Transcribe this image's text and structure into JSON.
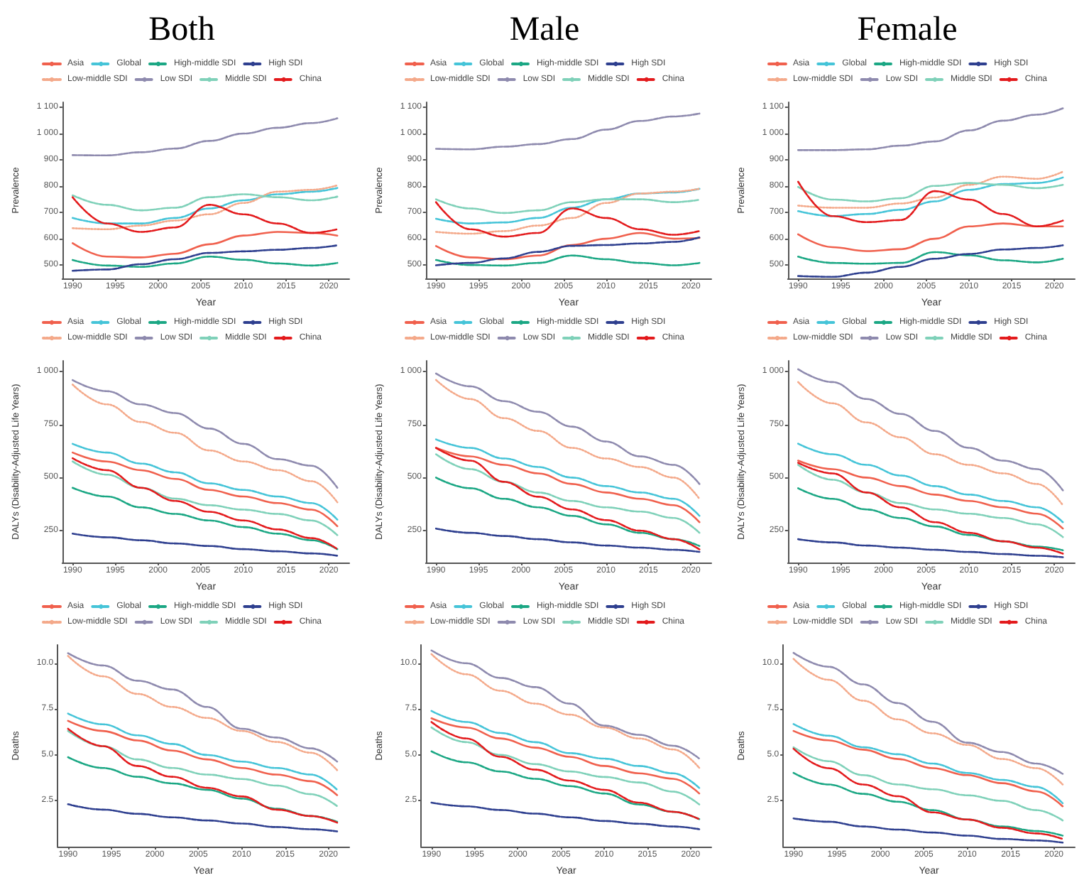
{
  "chart_data": [
    {
      "type": "line",
      "title": "Both",
      "xlabel": "Year",
      "ylabel": "Prevalence",
      "x": [
        1990,
        1994,
        1998,
        2002,
        2006,
        2010,
        2014,
        2018,
        2021
      ],
      "xlim": [
        1988.8,
        2022.4
      ],
      "xticks": [
        1990,
        1995,
        2000,
        2005,
        2010,
        2015,
        2020
      ],
      "ylim": [
        450,
        1120
      ],
      "yticks": [
        500,
        600,
        700,
        800,
        900,
        {
          "value": 1000,
          "label": "1 000"
        },
        {
          "value": 1100,
          "label": "1 100"
        }
      ],
      "grid": false,
      "legend": "top",
      "marker": "none",
      "series": [
        {
          "name": "Asia",
          "color": "#f0604d",
          "line_style": "solid",
          "values": [
            584,
            533,
            530,
            544,
            580,
            613,
            627,
            623,
            613
          ]
        },
        {
          "name": "Global",
          "color": "#45c4d8",
          "line_style": "dashed",
          "values": [
            680,
            659,
            659,
            680,
            716,
            747,
            770,
            780,
            794
          ]
        },
        {
          "name": "High-middle SDI",
          "color": "#1ba784",
          "line_style": "dashed",
          "values": [
            520,
            499,
            494,
            507,
            533,
            521,
            507,
            499,
            509
          ]
        },
        {
          "name": "High SDI",
          "color": "#2e3f8f",
          "line_style": "dashed",
          "values": [
            479,
            484,
            504,
            523,
            547,
            553,
            559,
            566,
            576
          ]
        },
        {
          "name": "Low-middle SDI",
          "color": "#f4a98a",
          "line_style": "dotted",
          "values": [
            641,
            637,
            651,
            670,
            694,
            737,
            780,
            787,
            804
          ]
        },
        {
          "name": "Low SDI",
          "color": "#8e8aae",
          "line_style": "dashed",
          "values": [
            919,
            918,
            930,
            944,
            973,
            1001,
            1023,
            1041,
            1059
          ]
        },
        {
          "name": "Middle SDI",
          "color": "#7fd1b9",
          "line_style": "dashed",
          "values": [
            766,
            730,
            709,
            719,
            759,
            770,
            759,
            747,
            761
          ]
        },
        {
          "name": "China",
          "color": "#e31a1c",
          "line_style": "dashed",
          "values": [
            759,
            659,
            627,
            644,
            730,
            694,
            659,
            623,
            637
          ]
        }
      ]
    },
    {
      "type": "line",
      "title": "Male",
      "xlabel": "Year",
      "ylabel": "Prevalence",
      "x": [
        1990,
        1994,
        1998,
        2002,
        2006,
        2010,
        2014,
        2018,
        2021
      ],
      "xlim": [
        1988.8,
        2022.4
      ],
      "xticks": [
        1990,
        1995,
        2000,
        2005,
        2010,
        2015,
        2020
      ],
      "ylim": [
        450,
        1120
      ],
      "yticks": [
        500,
        600,
        700,
        800,
        900,
        {
          "value": 1000,
          "label": "1 000"
        },
        {
          "value": 1100,
          "label": "1 100"
        }
      ],
      "grid": false,
      "legend": "top",
      "marker": "none",
      "series": [
        {
          "name": "Asia",
          "color": "#f0604d",
          "line_style": "solid",
          "values": [
            573,
            530,
            523,
            537,
            577,
            601,
            623,
            601,
            604
          ]
        },
        {
          "name": "Global",
          "color": "#45c4d8",
          "line_style": "dashed",
          "values": [
            677,
            659,
            663,
            680,
            719,
            751,
            773,
            777,
            791
          ]
        },
        {
          "name": "High-middle SDI",
          "color": "#1ba784",
          "line_style": "dashed",
          "values": [
            520,
            501,
            499,
            509,
            537,
            523,
            509,
            500,
            509
          ]
        },
        {
          "name": "High SDI",
          "color": "#2e3f8f",
          "line_style": "dashed",
          "values": [
            500,
            509,
            526,
            551,
            574,
            577,
            583,
            589,
            606
          ]
        },
        {
          "name": "Low-middle SDI",
          "color": "#f4a98a",
          "line_style": "dotted",
          "values": [
            627,
            620,
            630,
            651,
            680,
            737,
            773,
            780,
            791
          ]
        },
        {
          "name": "Low SDI",
          "color": "#8e8aae",
          "line_style": "dashed",
          "values": [
            943,
            941,
            951,
            961,
            980,
            1016,
            1049,
            1066,
            1077
          ]
        },
        {
          "name": "Middle SDI",
          "color": "#7fd1b9",
          "line_style": "dashed",
          "values": [
            751,
            716,
            699,
            709,
            740,
            751,
            751,
            740,
            749
          ]
        },
        {
          "name": "China",
          "color": "#e31a1c",
          "line_style": "dashed",
          "values": [
            740,
            637,
            609,
            623,
            716,
            680,
            637,
            616,
            630
          ]
        }
      ]
    },
    {
      "type": "line",
      "title": "Female",
      "xlabel": "Year",
      "ylabel": "Prevalence",
      "x": [
        1990,
        1994,
        1998,
        2002,
        2006,
        2010,
        2014,
        2018,
        2021
      ],
      "xlim": [
        1988.8,
        2022.4
      ],
      "xticks": [
        1990,
        1995,
        2000,
        2005,
        2010,
        2015,
        2020
      ],
      "ylim": [
        450,
        1120
      ],
      "yticks": [
        500,
        600,
        700,
        800,
        900,
        {
          "value": 1000,
          "label": "1 000"
        },
        {
          "value": 1100,
          "label": "1 100"
        }
      ],
      "grid": false,
      "legend": "top",
      "marker": "none",
      "series": [
        {
          "name": "Asia",
          "color": "#f0604d",
          "line_style": "solid",
          "values": [
            618,
            569,
            554,
            561,
            601,
            648,
            659,
            648,
            648
          ]
        },
        {
          "name": "Global",
          "color": "#45c4d8",
          "line_style": "dashed",
          "values": [
            706,
            687,
            695,
            711,
            743,
            787,
            809,
            813,
            834
          ]
        },
        {
          "name": "High-middle SDI",
          "color": "#1ba784",
          "line_style": "dashed",
          "values": [
            533,
            509,
            506,
            509,
            550,
            538,
            519,
            511,
            525
          ]
        },
        {
          "name": "High SDI",
          "color": "#2e3f8f",
          "line_style": "dashed",
          "values": [
            459,
            456,
            472,
            494,
            525,
            543,
            560,
            566,
            576
          ]
        },
        {
          "name": "Low-middle SDI",
          "color": "#f4a98a",
          "line_style": "dotted",
          "values": [
            727,
            719,
            719,
            735,
            758,
            806,
            837,
            829,
            856
          ]
        },
        {
          "name": "Low SDI",
          "color": "#8e8aae",
          "line_style": "dashed",
          "values": [
            938,
            938,
            941,
            955,
            971,
            1013,
            1050,
            1073,
            1097
          ]
        },
        {
          "name": "Middle SDI",
          "color": "#7fd1b9",
          "line_style": "dashed",
          "values": [
            798,
            750,
            743,
            755,
            802,
            813,
            806,
            793,
            806
          ]
        },
        {
          "name": "China",
          "color": "#e31a1c",
          "line_style": "dashed",
          "values": [
            818,
            687,
            664,
            672,
            782,
            750,
            695,
            648,
            670
          ]
        }
      ]
    },
    {
      "type": "line",
      "xlabel": "Year",
      "ylabel": "DALYs (Disability-Adjusted Life Years)",
      "x": [
        1990,
        1994,
        1998,
        2002,
        2006,
        2010,
        2014,
        2018,
        2021
      ],
      "xlim": [
        1988.8,
        2022.4
      ],
      "xticks": [
        1990,
        1995,
        2000,
        2005,
        2010,
        2015,
        2020
      ],
      "ylim": [
        100,
        1050
      ],
      "yticks": [
        250,
        500,
        750,
        {
          "value": 1000,
          "label": "1 000"
        }
      ],
      "grid": false,
      "legend": "top",
      "marker": "none",
      "series": [
        {
          "name": "Asia",
          "color": "#f0604d",
          "line_style": "solid",
          "values": [
            618,
            576,
            535,
            494,
            442,
            411,
            380,
            349,
            271
          ]
        },
        {
          "name": "Global",
          "color": "#45c4d8",
          "line_style": "dashed",
          "values": [
            659,
            618,
            566,
            525,
            473,
            442,
            411,
            380,
            302
          ]
        },
        {
          "name": "High-middle SDI",
          "color": "#1ba784",
          "line_style": "dashed",
          "values": [
            452,
            411,
            360,
            329,
            298,
            267,
            236,
            205,
            163
          ]
        },
        {
          "name": "High SDI",
          "color": "#2e3f8f",
          "line_style": "dashed",
          "values": [
            236,
            219,
            205,
            190,
            178,
            163,
            153,
            143,
            132
          ]
        },
        {
          "name": "Low-middle SDI",
          "color": "#f4a98a",
          "line_style": "dotted",
          "values": [
            938,
            845,
            762,
            711,
            628,
            576,
            535,
            483,
            384
          ]
        },
        {
          "name": "Low SDI",
          "color": "#8e8aae",
          "line_style": "dashed",
          "values": [
            959,
            907,
            845,
            804,
            731,
            659,
            587,
            556,
            452
          ]
        },
        {
          "name": "Middle SDI",
          "color": "#7fd1b9",
          "line_style": "dashed",
          "values": [
            576,
            514,
            452,
            401,
            370,
            349,
            329,
            298,
            229
          ]
        },
        {
          "name": "China",
          "color": "#e31a1c",
          "line_style": "dashed",
          "values": [
            591,
            535,
            452,
            390,
            339,
            298,
            256,
            215,
            163
          ]
        }
      ]
    },
    {
      "type": "line",
      "xlabel": "Year",
      "ylabel": "DALYs (Disability-Adjusted Life Years)",
      "x": [
        1990,
        1994,
        1998,
        2002,
        2006,
        2010,
        2014,
        2018,
        2021
      ],
      "xlim": [
        1988.8,
        2022.4
      ],
      "xticks": [
        1990,
        1995,
        2000,
        2005,
        2010,
        2015,
        2020
      ],
      "ylim": [
        100,
        1050
      ],
      "yticks": [
        250,
        500,
        750,
        {
          "value": 1000,
          "label": "1 000"
        }
      ],
      "grid": false,
      "legend": "top",
      "marker": "none",
      "series": [
        {
          "name": "Asia",
          "color": "#f0604d",
          "line_style": "solid",
          "values": [
            640,
            600,
            560,
            520,
            470,
            430,
            400,
            370,
            290
          ]
        },
        {
          "name": "Global",
          "color": "#45c4d8",
          "line_style": "dashed",
          "values": [
            680,
            640,
            590,
            550,
            500,
            460,
            430,
            400,
            320
          ]
        },
        {
          "name": "High-middle SDI",
          "color": "#1ba784",
          "line_style": "dashed",
          "values": [
            500,
            450,
            400,
            360,
            320,
            280,
            240,
            210,
            178
          ]
        },
        {
          "name": "High SDI",
          "color": "#2e3f8f",
          "line_style": "dashed",
          "values": [
            260,
            240,
            225,
            210,
            195,
            180,
            170,
            160,
            150
          ]
        },
        {
          "name": "Low-middle SDI",
          "color": "#f4a98a",
          "line_style": "dotted",
          "values": [
            960,
            870,
            780,
            720,
            640,
            590,
            550,
            500,
            400
          ]
        },
        {
          "name": "Low SDI",
          "color": "#8e8aae",
          "line_style": "dashed",
          "values": [
            990,
            930,
            860,
            810,
            740,
            670,
            600,
            560,
            470
          ]
        },
        {
          "name": "Middle SDI",
          "color": "#7fd1b9",
          "line_style": "dashed",
          "values": [
            610,
            540,
            480,
            430,
            390,
            360,
            340,
            310,
            240
          ]
        },
        {
          "name": "China",
          "color": "#e31a1c",
          "line_style": "dashed",
          "values": [
            640,
            580,
            480,
            410,
            350,
            300,
            250,
            210,
            162
          ]
        }
      ]
    },
    {
      "type": "line",
      "xlabel": "Year",
      "ylabel": "DALYs (Disability-Adjusted Life Years)",
      "x": [
        1990,
        1994,
        1998,
        2002,
        2006,
        2010,
        2014,
        2018,
        2021
      ],
      "xlim": [
        1988.8,
        2022.4
      ],
      "xticks": [
        1990,
        1995,
        2000,
        2005,
        2010,
        2015,
        2020
      ],
      "ylim": [
        100,
        1050
      ],
      "yticks": [
        250,
        500,
        750,
        {
          "value": 1000,
          "label": "1 000"
        }
      ],
      "grid": false,
      "legend": "top",
      "marker": "none",
      "series": [
        {
          "name": "Asia",
          "color": "#f0604d",
          "line_style": "solid",
          "values": [
            580,
            540,
            500,
            460,
            420,
            390,
            360,
            330,
            260
          ]
        },
        {
          "name": "Global",
          "color": "#45c4d8",
          "line_style": "dashed",
          "values": [
            660,
            610,
            560,
            510,
            460,
            420,
            390,
            360,
            290
          ]
        },
        {
          "name": "High-middle SDI",
          "color": "#1ba784",
          "line_style": "dashed",
          "values": [
            450,
            400,
            350,
            310,
            270,
            230,
            200,
            175,
            158
          ]
        },
        {
          "name": "High SDI",
          "color": "#2e3f8f",
          "line_style": "dashed",
          "values": [
            210,
            195,
            180,
            170,
            160,
            150,
            140,
            132,
            125
          ]
        },
        {
          "name": "Low-middle SDI",
          "color": "#f4a98a",
          "line_style": "dotted",
          "values": [
            950,
            850,
            760,
            690,
            610,
            560,
            520,
            470,
            370
          ]
        },
        {
          "name": "Low SDI",
          "color": "#8e8aae",
          "line_style": "dashed",
          "values": [
            1010,
            950,
            870,
            800,
            720,
            640,
            580,
            540,
            440
          ]
        },
        {
          "name": "Middle SDI",
          "color": "#7fd1b9",
          "line_style": "dashed",
          "values": [
            560,
            490,
            430,
            380,
            350,
            330,
            310,
            280,
            220
          ]
        },
        {
          "name": "China",
          "color": "#e31a1c",
          "line_style": "dashed",
          "values": [
            570,
            520,
            430,
            360,
            290,
            240,
            200,
            170,
            142
          ]
        }
      ]
    },
    {
      "type": "line",
      "xlabel": "Year",
      "ylabel": "Deaths",
      "x": [
        1990,
        1994,
        1998,
        2002,
        2006,
        2010,
        2014,
        2018,
        2021
      ],
      "xlim": [
        1988.8,
        2022.4
      ],
      "xticks": [
        1990,
        1995,
        2000,
        2005,
        2010,
        2015,
        2020
      ],
      "ylim": [
        0,
        11
      ],
      "yticks": [
        2.5,
        {
          "value": 5,
          "label": "5.0"
        },
        7.5,
        {
          "value": 10,
          "label": "10.0"
        }
      ],
      "grid": false,
      "legend": "top",
      "marker": "none",
      "series": [
        {
          "name": "Asia",
          "color": "#f0604d",
          "line_style": "solid",
          "values": [
            6.86,
            6.31,
            5.79,
            5.24,
            4.76,
            4.29,
            3.93,
            3.57,
            2.81
          ]
        },
        {
          "name": "Global",
          "color": "#45c4d8",
          "line_style": "dashed",
          "values": [
            7.26,
            6.67,
            6.07,
            5.6,
            5.0,
            4.64,
            4.29,
            3.93,
            3.1
          ]
        },
        {
          "name": "High-middle SDI",
          "color": "#1ba784",
          "line_style": "dashed",
          "values": [
            4.88,
            4.29,
            3.81,
            3.45,
            3.1,
            2.62,
            2.07,
            1.67,
            1.36
          ]
        },
        {
          "name": "High SDI",
          "color": "#2e3f8f",
          "line_style": "dashed",
          "values": [
            2.31,
            2.02,
            1.79,
            1.6,
            1.43,
            1.26,
            1.07,
            0.95,
            0.83
          ]
        },
        {
          "name": "Low-middle SDI",
          "color": "#f4a98a",
          "line_style": "dotted",
          "values": [
            10.4,
            9.29,
            8.33,
            7.62,
            7.02,
            6.31,
            5.71,
            5.12,
            4.17
          ]
        },
        {
          "name": "Low SDI",
          "color": "#8e8aae",
          "line_style": "dashed",
          "values": [
            10.55,
            9.88,
            9.05,
            8.57,
            7.62,
            6.43,
            5.95,
            5.36,
            4.64
          ]
        },
        {
          "name": "Middle SDI",
          "color": "#7fd1b9",
          "line_style": "dashed",
          "values": [
            6.31,
            5.48,
            4.76,
            4.29,
            3.93,
            3.69,
            3.33,
            2.86,
            2.21
          ]
        },
        {
          "name": "China",
          "color": "#e31a1c",
          "line_style": "dashed",
          "values": [
            6.43,
            5.48,
            4.4,
            3.81,
            3.21,
            2.74,
            2.02,
            1.67,
            1.31
          ]
        }
      ]
    },
    {
      "type": "line",
      "xlabel": "Year",
      "ylabel": "Deaths",
      "x": [
        1990,
        1994,
        1998,
        2002,
        2006,
        2010,
        2014,
        2018,
        2021
      ],
      "xlim": [
        1988.8,
        2022.4
      ],
      "xticks": [
        1990,
        1995,
        2000,
        2005,
        2010,
        2015,
        2020
      ],
      "ylim": [
        0,
        11
      ],
      "yticks": [
        2.5,
        {
          "value": 5,
          "label": "5.0"
        },
        7.5,
        {
          "value": 10,
          "label": "10.0"
        }
      ],
      "grid": false,
      "legend": "top",
      "marker": "none",
      "series": [
        {
          "name": "Asia",
          "color": "#f0604d",
          "line_style": "solid",
          "values": [
            7.0,
            6.5,
            5.9,
            5.4,
            4.9,
            4.4,
            4.0,
            3.7,
            2.9
          ]
        },
        {
          "name": "Global",
          "color": "#45c4d8",
          "line_style": "dashed",
          "values": [
            7.4,
            6.8,
            6.2,
            5.7,
            5.1,
            4.8,
            4.4,
            4.0,
            3.2
          ]
        },
        {
          "name": "High-middle SDI",
          "color": "#1ba784",
          "line_style": "dashed",
          "values": [
            5.2,
            4.6,
            4.1,
            3.7,
            3.3,
            2.9,
            2.3,
            1.9,
            1.5
          ]
        },
        {
          "name": "High SDI",
          "color": "#2e3f8f",
          "line_style": "dashed",
          "values": [
            2.4,
            2.2,
            2.0,
            1.8,
            1.6,
            1.4,
            1.25,
            1.1,
            0.95
          ]
        },
        {
          "name": "Low-middle SDI",
          "color": "#f4a98a",
          "line_style": "dotted",
          "values": [
            10.5,
            9.4,
            8.5,
            7.8,
            7.2,
            6.5,
            5.9,
            5.3,
            4.3
          ]
        },
        {
          "name": "Low SDI",
          "color": "#8e8aae",
          "line_style": "dashed",
          "values": [
            10.7,
            10.0,
            9.2,
            8.7,
            7.8,
            6.6,
            6.1,
            5.5,
            4.8
          ]
        },
        {
          "name": "Middle SDI",
          "color": "#7fd1b9",
          "line_style": "dashed",
          "values": [
            6.5,
            5.7,
            5.0,
            4.5,
            4.1,
            3.8,
            3.5,
            3.0,
            2.3
          ]
        },
        {
          "name": "China",
          "color": "#e31a1c",
          "line_style": "dashed",
          "values": [
            6.8,
            5.9,
            4.9,
            4.2,
            3.6,
            3.1,
            2.4,
            1.9,
            1.5
          ]
        }
      ]
    },
    {
      "type": "line",
      "xlabel": "Year",
      "ylabel": "Deaths",
      "x": [
        1990,
        1994,
        1998,
        2002,
        2006,
        2010,
        2014,
        2018,
        2021
      ],
      "xlim": [
        1988.8,
        2022.4
      ],
      "xticks": [
        1990,
        1995,
        2000,
        2005,
        2010,
        2015,
        2020
      ],
      "ylim": [
        0,
        11
      ],
      "yticks": [
        2.5,
        {
          "value": 5,
          "label": "5.0"
        },
        7.5,
        {
          "value": 10,
          "label": "10.0"
        }
      ],
      "grid": false,
      "legend": "top",
      "marker": "none",
      "series": [
        {
          "name": "Asia",
          "color": "#f0604d",
          "line_style": "solid",
          "values": [
            6.31,
            5.8,
            5.29,
            4.78,
            4.28,
            3.9,
            3.46,
            3.01,
            2.2
          ]
        },
        {
          "name": "Global",
          "color": "#45c4d8",
          "line_style": "dashed",
          "values": [
            6.69,
            6.05,
            5.42,
            5.04,
            4.53,
            4.02,
            3.64,
            3.26,
            2.37
          ]
        },
        {
          "name": "High-middle SDI",
          "color": "#1ba784",
          "line_style": "dashed",
          "values": [
            4.02,
            3.39,
            2.88,
            2.45,
            1.99,
            1.48,
            1.1,
            0.85,
            0.6
          ]
        },
        {
          "name": "High SDI",
          "color": "#2e3f8f",
          "line_style": "dashed",
          "values": [
            1.54,
            1.36,
            1.1,
            0.93,
            0.77,
            0.6,
            0.42,
            0.34,
            0.22
          ]
        },
        {
          "name": "Low-middle SDI",
          "color": "#f4a98a",
          "line_style": "dotted",
          "values": [
            10.24,
            9.1,
            7.96,
            6.94,
            6.18,
            5.55,
            4.78,
            4.28,
            3.39
          ]
        },
        {
          "name": "Low SDI",
          "color": "#8e8aae",
          "line_style": "dashed",
          "values": [
            10.57,
            9.81,
            8.85,
            7.83,
            6.81,
            5.67,
            5.16,
            4.53,
            3.97
          ]
        },
        {
          "name": "Middle SDI",
          "color": "#7fd1b9",
          "line_style": "dashed",
          "values": [
            5.42,
            4.66,
            3.9,
            3.39,
            3.13,
            2.8,
            2.5,
            1.99,
            1.43
          ]
        },
        {
          "name": "China",
          "color": "#e31a1c",
          "line_style": "dashed",
          "values": [
            5.34,
            4.28,
            3.39,
            2.75,
            1.87,
            1.48,
            1.03,
            0.72,
            0.42
          ]
        }
      ]
    }
  ]
}
